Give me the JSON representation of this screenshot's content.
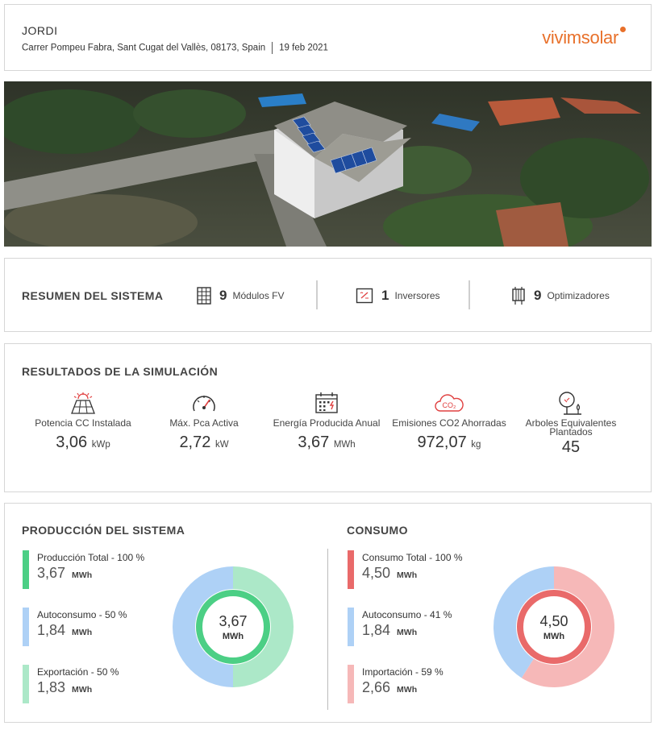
{
  "header": {
    "customer_name": "JORDI",
    "address": "Carrer Pompeu Fabra, Sant Cugat del Vallès, 08173, Spain",
    "date": "19 feb 2021",
    "logo_text": "vivimsolar",
    "brand_color": "#e8702a"
  },
  "summary": {
    "title": "RESUMEN DEL SISTEMA",
    "items": [
      {
        "icon": "solar-module-icon",
        "count": "9",
        "label": "Módulos FV"
      },
      {
        "icon": "inverter-icon",
        "count": "1",
        "label": "Inversores"
      },
      {
        "icon": "optimizer-icon",
        "count": "9",
        "label": "Optimizadores"
      }
    ]
  },
  "results": {
    "title": "RESULTADOS DE LA SIMULACIÓN",
    "items": [
      {
        "icon": "solar-panel-icon",
        "label": "Potencia CC Instalada",
        "value": "3,06",
        "unit": "kWp"
      },
      {
        "icon": "gauge-icon",
        "label": "Máx. Pca Activa",
        "value": "2,72",
        "unit": "kW"
      },
      {
        "icon": "calendar-energy-icon",
        "label": "Energía Producida Anual",
        "value": "3,67",
        "unit": "MWh"
      },
      {
        "icon": "co2-cloud-icon",
        "label": "Emisiones CO2 Ahorradas",
        "value": "972,07",
        "unit": "kg"
      },
      {
        "icon": "trees-icon",
        "label": "Arboles Equivalentes Plantados",
        "value": "45",
        "unit": ""
      }
    ]
  },
  "production": {
    "title": "PRODUCCIÓN DEL SISTEMA",
    "legend": [
      {
        "label": "Producción Total - 100 %",
        "value": "3,67",
        "unit": "MWh",
        "color": "#4ccf85"
      },
      {
        "label": "Autoconsumo - 50 %",
        "value": "1,84",
        "unit": "MWh",
        "color": "#aed1f6"
      },
      {
        "label": "Exportación - 50 %",
        "value": "1,83",
        "unit": "MWh",
        "color": "#ace8c8"
      }
    ],
    "donut": {
      "center_value": "3,67",
      "center_unit": "MWh",
      "fractions": [
        0.5,
        0.5
      ],
      "colors": [
        "#ace8c8",
        "#aed1f6"
      ],
      "ring_color": "#4ccf85"
    }
  },
  "consumption": {
    "title": "CONSUMO",
    "legend": [
      {
        "label": "Consumo Total - 100 %",
        "value": "4,50",
        "unit": "MWh",
        "color": "#e96a6a"
      },
      {
        "label": "Autoconsumo - 41 %",
        "value": "1,84",
        "unit": "MWh",
        "color": "#aed1f6"
      },
      {
        "label": "Importación - 59 %",
        "value": "2,66",
        "unit": "MWh",
        "color": "#f6b8b8"
      }
    ],
    "donut": {
      "center_value": "4,50",
      "center_unit": "MWh",
      "fractions": [
        0.59,
        0.41
      ],
      "colors": [
        "#f6b8b8",
        "#aed1f6"
      ],
      "ring_color": "#e96a6a"
    }
  }
}
